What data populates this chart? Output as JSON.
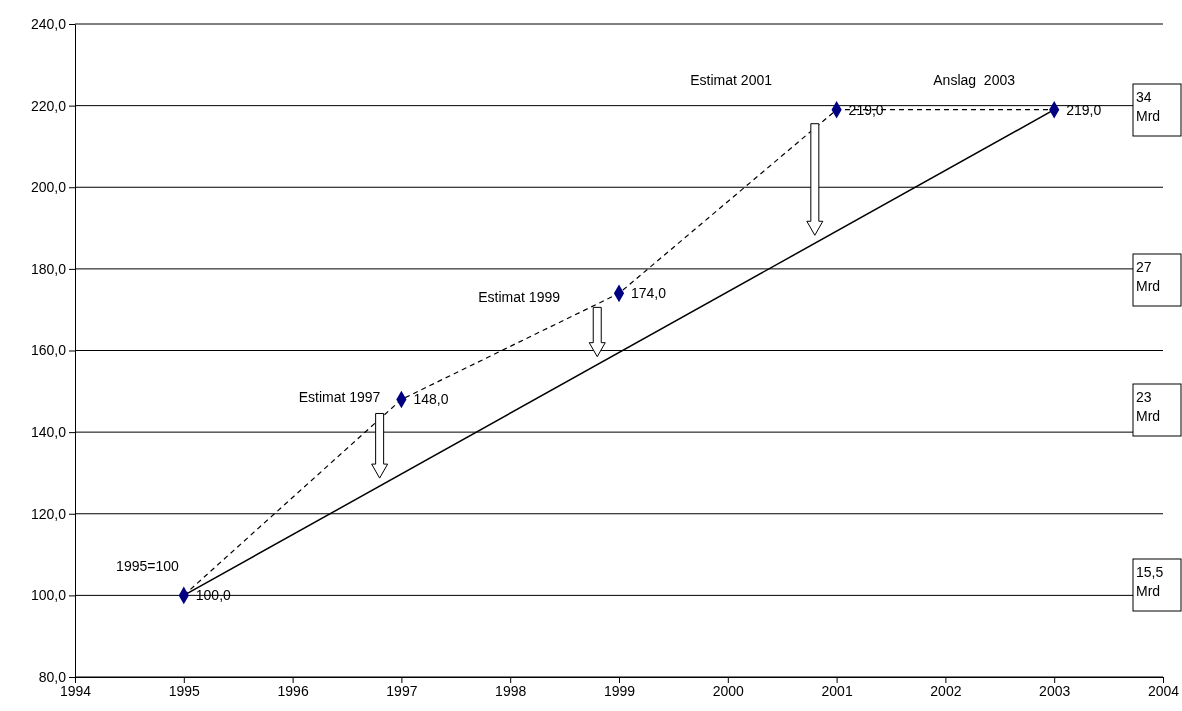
{
  "chart_data": {
    "type": "line",
    "xlim": [
      1994,
      2004
    ],
    "xticks": [
      1994,
      1995,
      1996,
      1997,
      1998,
      1999,
      2000,
      2001,
      2002,
      2003,
      2004
    ],
    "ylim": [
      80,
      240
    ],
    "yticks": [
      {
        "value": 80,
        "label": "80,0"
      },
      {
        "value": 100,
        "label": "100,0"
      },
      {
        "value": 120,
        "label": "120,0"
      },
      {
        "value": 140,
        "label": "140,0"
      },
      {
        "value": 160,
        "label": "160,0"
      },
      {
        "value": 180,
        "label": "180,0"
      },
      {
        "value": 200,
        "label": "200,0"
      },
      {
        "value": 220,
        "label": "220,0"
      },
      {
        "value": 240,
        "label": "240,0"
      }
    ],
    "grid": "y",
    "series": [
      {
        "color": "#000000",
        "line_style": "solid",
        "marker": "none",
        "x": [
          1995,
          2003
        ],
        "values": [
          100,
          219
        ]
      },
      {
        "color": "#000000",
        "line_style": "dashed",
        "marker": "none",
        "x": [
          1995,
          1997,
          1999,
          2001,
          2003
        ],
        "values": [
          100,
          148,
          174,
          219,
          219
        ]
      },
      {
        "type": "scatter",
        "color": "#000080",
        "marker": "diamond",
        "x": [
          1995,
          1997,
          1999,
          2001,
          2003
        ],
        "values": [
          100,
          148,
          174,
          219,
          219
        ],
        "value_labels": [
          "100,0",
          "148,0",
          "174,0",
          "219,0",
          "219,0"
        ]
      }
    ],
    "annotations": [
      {
        "text": "1995=100",
        "x": 1995,
        "y": 100
      },
      {
        "text": "Estimat 1997",
        "x": 1997,
        "y": 148
      },
      "Estimat 1999",
      "Estimat 2001",
      "Anslag  2003",
      "34 Mrd",
      "27 Mrd",
      "23 Mrd",
      "15,5 Mrd"
    ]
  }
}
